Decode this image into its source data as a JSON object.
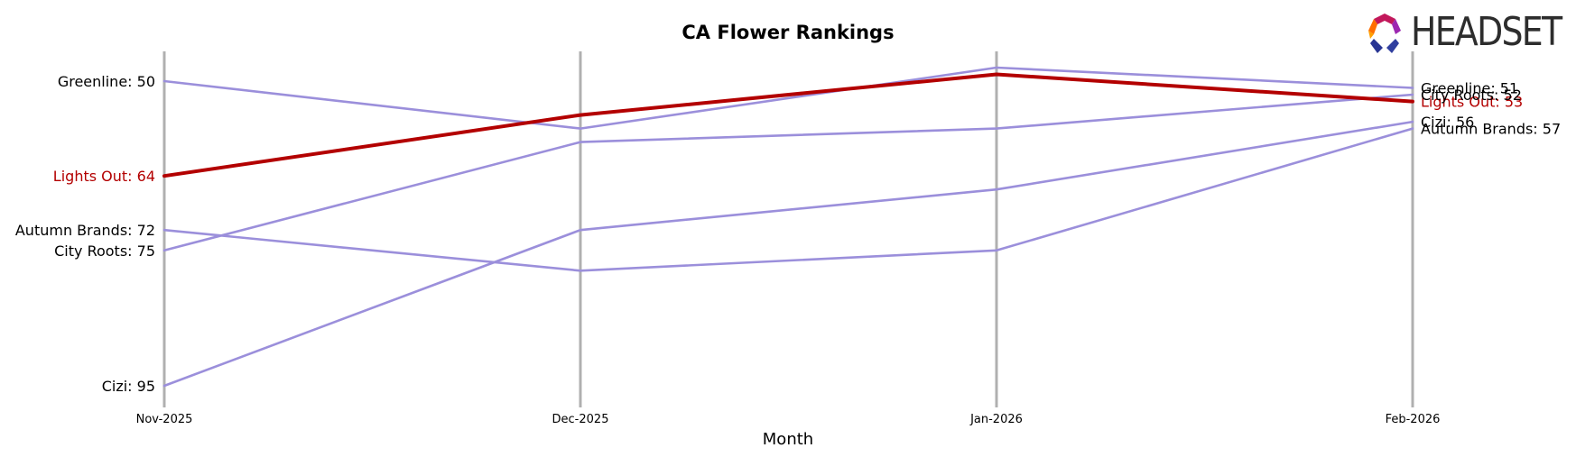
{
  "brand": {
    "name": "HEADSET"
  },
  "chart_data": {
    "type": "line",
    "title": "CA Flower Rankings",
    "xlabel": "Month",
    "ylabel": "",
    "categories": [
      "Nov-2025",
      "Dec-2025",
      "Jan-2026",
      "Feb-2026"
    ],
    "y_inverted": true,
    "ylim": [
      97,
      48
    ],
    "grid": "vertical",
    "series": [
      {
        "name": "Greenline",
        "values": [
          50,
          57,
          48,
          51
        ],
        "start_label": "Greenline: 50",
        "end_label": "Greenline: 51",
        "color": "#9b8fdb",
        "highlight": false
      },
      {
        "name": "Lights Out",
        "values": [
          64,
          55,
          49,
          53
        ],
        "start_label": "Lights Out: 64",
        "end_label": "Lights Out: 53",
        "color": "#b30000",
        "highlight": true
      },
      {
        "name": "Autumn Brands",
        "values": [
          72,
          78,
          75,
          57
        ],
        "start_label": "Autumn Brands: 72",
        "end_label": "Autumn Brands: 57",
        "color": "#9b8fdb",
        "highlight": false
      },
      {
        "name": "City Roots",
        "values": [
          75,
          59,
          57,
          52
        ],
        "start_label": "City Roots: 75",
        "end_label": "City Roots: 52",
        "color": "#9b8fdb",
        "highlight": false
      },
      {
        "name": "Cizi",
        "values": [
          95,
          72,
          66,
          56
        ],
        "start_label": "Cizi: 95",
        "end_label": "Cizi: 56",
        "color": "#9b8fdb",
        "highlight": false
      }
    ]
  }
}
